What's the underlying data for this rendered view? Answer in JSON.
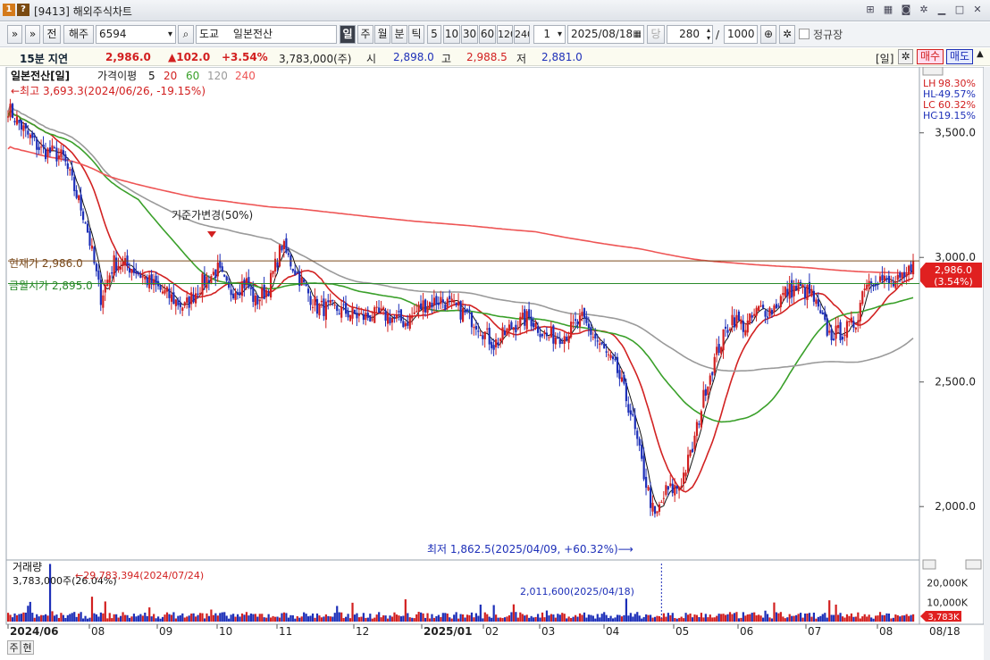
{
  "window": {
    "badge_1": "1",
    "badge_help": "?",
    "title": "[9413] 해외주식차트"
  },
  "toolbar": {
    "nav_forward": "»",
    "nav_down": "»",
    "prev": "전",
    "market": "해주",
    "code": "6594",
    "exchange": "도교",
    "name": "일본전산",
    "periods": [
      "일",
      "주",
      "월",
      "분",
      "틱"
    ],
    "minutes": [
      "5",
      "10",
      "30",
      "60",
      "120",
      "240"
    ],
    "interval": "1",
    "date": "2025/08/18",
    "current_label": "당",
    "count": "280",
    "slash": "/",
    "max_count": "1000",
    "regular_label": "정규장"
  },
  "quote": {
    "delay": "15분 지연",
    "price": "2,986.0",
    "change": "▲102.0",
    "change_pct": "+3.54%",
    "volume": "3,783,000(주)",
    "open_label": "시",
    "open": "2,898.0",
    "high_label": "고",
    "high": "2,988.5",
    "low_label": "저",
    "low": "2,881.0",
    "period_tag": "[일]",
    "buy_label": "매수",
    "sell_label": "매도"
  },
  "chart": {
    "legend_name": "일본전산[일]",
    "legend_ma_label": "가격이평",
    "ma_periods": [
      "5",
      "20",
      "60",
      "120",
      "240"
    ],
    "ma_colors": [
      "#111111",
      "#d22222",
      "#3aa02a",
      "#9a9a9a",
      "#ee5555"
    ],
    "high_note": "←최고 3,693.3(2024/06/26, -19.15%)",
    "low_note": "최저 1,862.5(2025/04/09, +60.32%)⟶",
    "event_note": "기준가변경(50%)",
    "current_line_label": "현재가 2,986.0",
    "prev_close_label": "금월시가 2,895.0",
    "current_tag": "2,986.0",
    "current_tag_pct": "(3.54%)",
    "stats": [
      {
        "label": "LH",
        "value": "98.30%"
      },
      {
        "label": "HL",
        "value": "-49.57%"
      },
      {
        "label": "LC",
        "value": "60.32%"
      },
      {
        "label": "HC",
        "value": "-19.15%"
      }
    ],
    "y_ticks": [
      "3,500.0",
      "3,000.0",
      "2,500.0",
      "2,000.0"
    ],
    "y_tick_values": [
      3500,
      3000,
      2500,
      2000
    ],
    "y_range": [
      1800,
      3750
    ],
    "x_labels": [
      "2024/06",
      "08",
      "09",
      "10",
      "11",
      "12",
      "2025/01",
      "02",
      "03",
      "04",
      "05",
      "06",
      "07",
      "08"
    ],
    "last_date": "08/18",
    "current_value": 2986,
    "prev_close_value": 2895,
    "colors": {
      "up": "#d22020",
      "down": "#1d2fb8",
      "current_line": "#7a4a1c",
      "prev_close_line": "#2a8a2a"
    }
  },
  "volume": {
    "title": "거래량",
    "current": "3,783,000주(26.04%)",
    "max_note": "←29,783,394(2024/07/24)",
    "event_note": "2,011,600(2025/04/18)",
    "y_ticks": [
      "20,000K",
      "10,000K"
    ],
    "y_tick_values": [
      20000,
      10000
    ],
    "y_max": 30000,
    "current_tag": "3,783K",
    "current_value": 3783
  },
  "bottom_tabs": [
    "주",
    "현"
  ]
}
